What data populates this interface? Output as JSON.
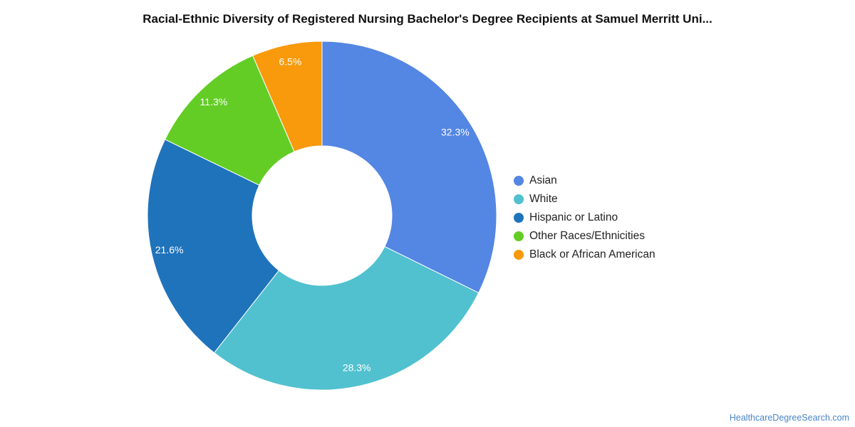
{
  "title": "Racial-Ethnic Diversity of Registered Nursing Bachelor's Degree Recipients at Samuel Merritt Uni...",
  "source": "HealthcareDegreeSearch.com",
  "chart_data": {
    "type": "pie",
    "donut": true,
    "title": "Racial-Ethnic Diversity of Registered Nursing Bachelor's Degree Recipients at Samuel Merritt Uni...",
    "legend_position": "right",
    "categories": [
      "Asian",
      "White",
      "Hispanic or Latino",
      "Other Races/Ethnicities",
      "Black or African American"
    ],
    "values": [
      32.3,
      28.3,
      21.6,
      11.3,
      6.5
    ],
    "labels": [
      "32.3%",
      "28.3%",
      "21.6%",
      "11.3%",
      "6.5%"
    ],
    "colors": [
      "#5486e3",
      "#51c1cf",
      "#1f73bb",
      "#63cd26",
      "#f89a0c"
    ]
  }
}
